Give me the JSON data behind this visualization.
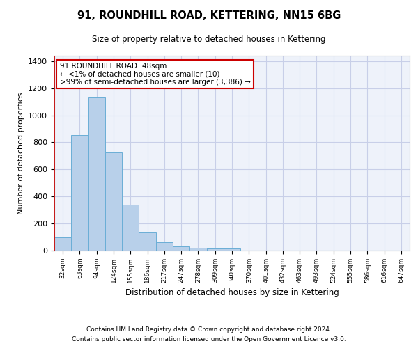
{
  "title": "91, ROUNDHILL ROAD, KETTERING, NN15 6BG",
  "subtitle": "Size of property relative to detached houses in Kettering",
  "xlabel": "Distribution of detached houses by size in Kettering",
  "ylabel": "Number of detached properties",
  "footnote1": "Contains HM Land Registry data © Crown copyright and database right 2024.",
  "footnote2": "Contains public sector information licensed under the Open Government Licence v3.0.",
  "bar_labels": [
    "32sqm",
    "63sqm",
    "94sqm",
    "124sqm",
    "155sqm",
    "186sqm",
    "217sqm",
    "247sqm",
    "278sqm",
    "309sqm",
    "340sqm",
    "370sqm",
    "401sqm",
    "432sqm",
    "463sqm",
    "493sqm",
    "524sqm",
    "555sqm",
    "586sqm",
    "616sqm",
    "647sqm"
  ],
  "bar_values": [
    100,
    855,
    1130,
    725,
    340,
    135,
    60,
    30,
    20,
    15,
    15,
    0,
    0,
    0,
    0,
    0,
    0,
    0,
    0,
    0,
    0
  ],
  "bar_color": "#b8d0ea",
  "bar_edge_color": "#6aaed6",
  "ylim": [
    0,
    1440
  ],
  "yticks": [
    0,
    200,
    400,
    600,
    800,
    1000,
    1200,
    1400
  ],
  "annotation_text": "91 ROUNDHILL ROAD: 48sqm\n← <1% of detached houses are smaller (10)\n>99% of semi-detached houses are larger (3,386) →",
  "red_line_color": "#cc0000",
  "annotation_box_color": "#cc0000",
  "background_color": "#eef2fa",
  "grid_color": "#c8cfe8"
}
